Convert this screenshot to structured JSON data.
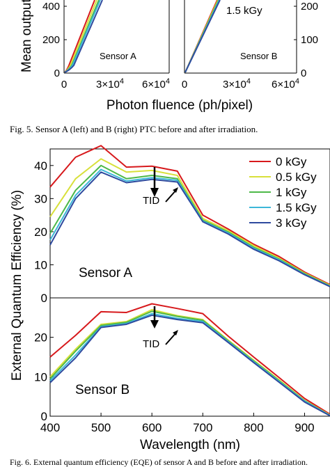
{
  "top_figure": {
    "ylabel": "Mean output",
    "xlabel": "Photon fluence (ph/pixel)",
    "left_panel": {
      "label": "Sensor A",
      "ytick_labels": [
        "0",
        "200",
        "400"
      ],
      "xtick_labels": [
        {
          "base": "0",
          "exp": ""
        },
        {
          "base": "3×10",
          "exp": "4"
        },
        {
          "base": "6×10",
          "exp": "4"
        }
      ]
    },
    "right_panel": {
      "label": "Sensor B",
      "annotation": "1.5 kGy",
      "ytick_labels": [
        "0",
        "100",
        "200"
      ],
      "xtick_labels": [
        {
          "base": "0",
          "exp": ""
        },
        {
          "base": "3×10",
          "exp": "4"
        },
        {
          "base": "6×10",
          "exp": "4"
        }
      ]
    }
  },
  "caption_fig5": "Fig. 5.   Sensor A (left) and B (right) PTC before and after irradiation.",
  "caption_fig6": "Fig. 6.   External quantum efficiency (EQE) of sensor A and B before and after irradiation.",
  "colors": {
    "0 kGy": "#d7191c",
    "0.5 kGy": "#d8e03a",
    "1 kGy": "#4db848",
    "1.5 kGy": "#3cb7d8",
    "3 kGy": "#2e4a9e"
  },
  "chart_data": [
    {
      "type": "line",
      "panel": "Sensor A",
      "ylabel": "External Quantum Efficiency (%)",
      "xlabel": "Wavelength (nm)",
      "xlim": [
        400,
        950
      ],
      "ylim": [
        0,
        45
      ],
      "yticks": [
        "0",
        "10",
        "20",
        "30",
        "40"
      ],
      "annotation": "Sensor A",
      "arrow_label": "TID",
      "legend_position": "top-right",
      "x": [
        400,
        450,
        500,
        550,
        600,
        650,
        700,
        750,
        800,
        850,
        900,
        950
      ],
      "series": [
        {
          "name": "0 kGy",
          "values": [
            33.5,
            42.5,
            46.0,
            39.5,
            39.8,
            38.3,
            25.0,
            20.8,
            16.2,
            12.5,
            7.8,
            4.0
          ]
        },
        {
          "name": "0.5 kGy",
          "values": [
            24.5,
            36.0,
            42.0,
            38.0,
            38.5,
            37.0,
            24.0,
            20.3,
            15.8,
            12.0,
            7.5,
            3.8
          ]
        },
        {
          "name": "1 kGy",
          "values": [
            19.5,
            32.5,
            40.0,
            36.0,
            37.0,
            36.0,
            23.5,
            19.9,
            15.3,
            11.7,
            7.3,
            3.6
          ]
        },
        {
          "name": "1.5 kGy",
          "values": [
            17.5,
            31.0,
            38.8,
            35.3,
            36.3,
            35.5,
            23.2,
            19.6,
            15.0,
            11.5,
            7.1,
            3.5
          ]
        },
        {
          "name": "3 kGy",
          "values": [
            16.0,
            30.0,
            38.0,
            34.8,
            35.8,
            35.0,
            23.0,
            19.3,
            14.7,
            11.2,
            7.0,
            3.4
          ]
        }
      ]
    },
    {
      "type": "line",
      "panel": "Sensor B",
      "ylabel": "External Quantum Efficiency (%)",
      "xlabel": "Wavelength (nm)",
      "xlim": [
        400,
        950
      ],
      "ylim": [
        0,
        30
      ],
      "yticks": [
        "0",
        "10",
        "20"
      ],
      "xticks": [
        "400",
        "500",
        "600",
        "700",
        "800",
        "900"
      ],
      "annotation": "Sensor B",
      "arrow_label": "TID",
      "x": [
        400,
        450,
        500,
        550,
        600,
        650,
        700,
        750,
        800,
        850,
        900,
        950
      ],
      "series": [
        {
          "name": "0 kGy",
          "values": [
            15.0,
            20.5,
            26.5,
            26.3,
            28.5,
            27.3,
            26.0,
            20.3,
            15.0,
            9.8,
            4.5,
            0.5
          ]
        },
        {
          "name": "0.5 kGy",
          "values": [
            10.0,
            17.0,
            23.3,
            24.0,
            27.0,
            25.5,
            24.5,
            19.3,
            14.2,
            9.2,
            4.0,
            0.3
          ]
        },
        {
          "name": "1 kGy",
          "values": [
            9.5,
            16.5,
            23.0,
            23.8,
            26.6,
            25.3,
            24.3,
            19.1,
            14.0,
            9.0,
            3.9,
            0.2
          ]
        },
        {
          "name": "1.5 kGy",
          "values": [
            9.0,
            15.5,
            22.7,
            23.5,
            26.0,
            24.8,
            24.0,
            18.9,
            13.8,
            8.8,
            3.8,
            0.2
          ]
        },
        {
          "name": "3 kGy",
          "values": [
            8.5,
            14.8,
            22.5,
            23.3,
            25.6,
            24.5,
            23.7,
            18.7,
            13.6,
            8.6,
            3.6,
            0.1
          ]
        }
      ]
    }
  ]
}
